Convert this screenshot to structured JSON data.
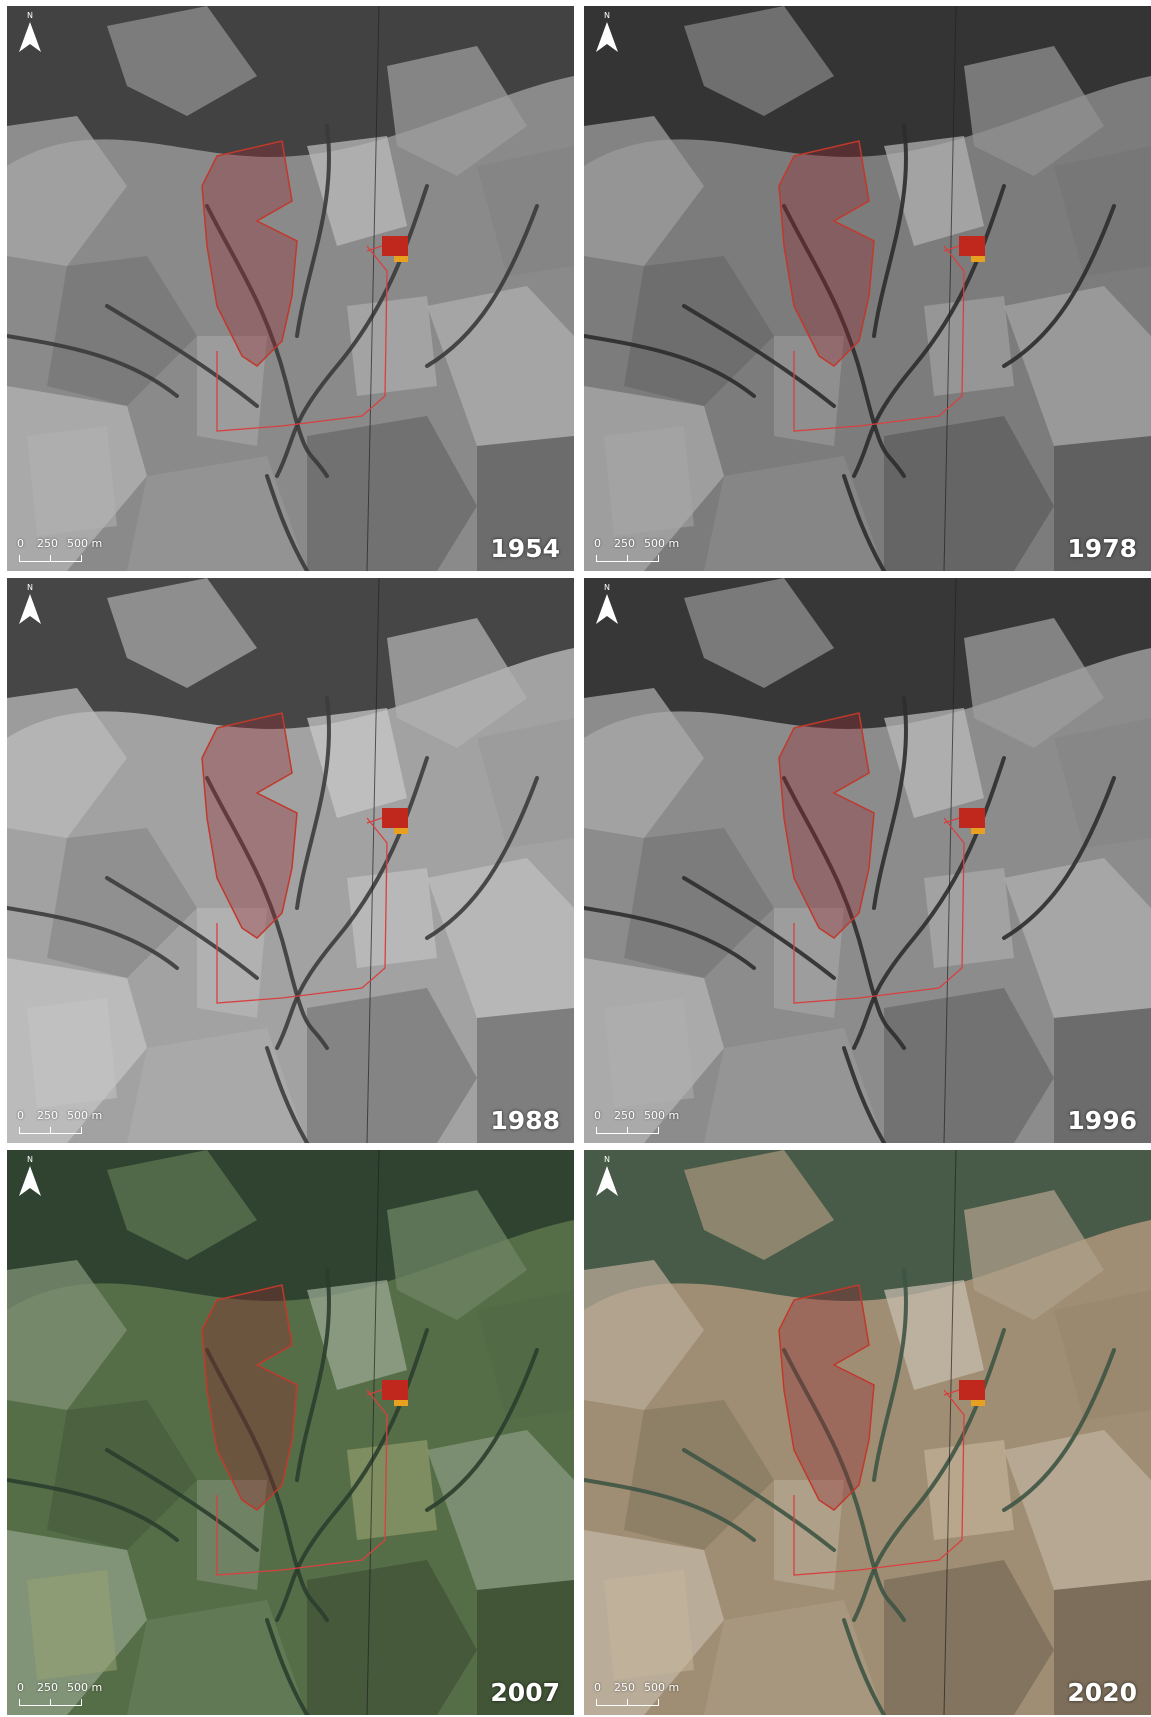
{
  "north_arrow": {
    "letter": "N",
    "icon": "north-arrow-icon"
  },
  "scale_bar": {
    "label_0": "0",
    "label_1": "250",
    "label_2": "500 m"
  },
  "legend_colors": {
    "study_area_outline": "#c0392b",
    "study_area_fill": "rgba(150,40,50,0.35)",
    "block_red": "#c0281e",
    "block_orange": "#e8a020"
  },
  "panels": [
    {
      "year": "1954",
      "style": "grayscale",
      "base": "#8a8a8a",
      "dark": "#3a3a3a",
      "light": "#b4b4b4"
    },
    {
      "year": "1978",
      "style": "grayscale",
      "base": "#7c7c7c",
      "dark": "#2c2c2c",
      "light": "#a8a8a8"
    },
    {
      "year": "1988",
      "style": "grayscale",
      "base": "#a2a2a2",
      "dark": "#3c3c3c",
      "light": "#c6c6c6"
    },
    {
      "year": "1996",
      "style": "grayscale",
      "base": "#8c8c8c",
      "dark": "#2e2e2e",
      "light": "#b0b0b0"
    },
    {
      "year": "2007",
      "style": "color",
      "base": "#566e48",
      "dark": "#2b3e2e",
      "light": "#9aa472"
    },
    {
      "year": "2020",
      "style": "color",
      "base": "#a08e74",
      "dark": "#3e5444",
      "light": "#c8b89c"
    }
  ]
}
